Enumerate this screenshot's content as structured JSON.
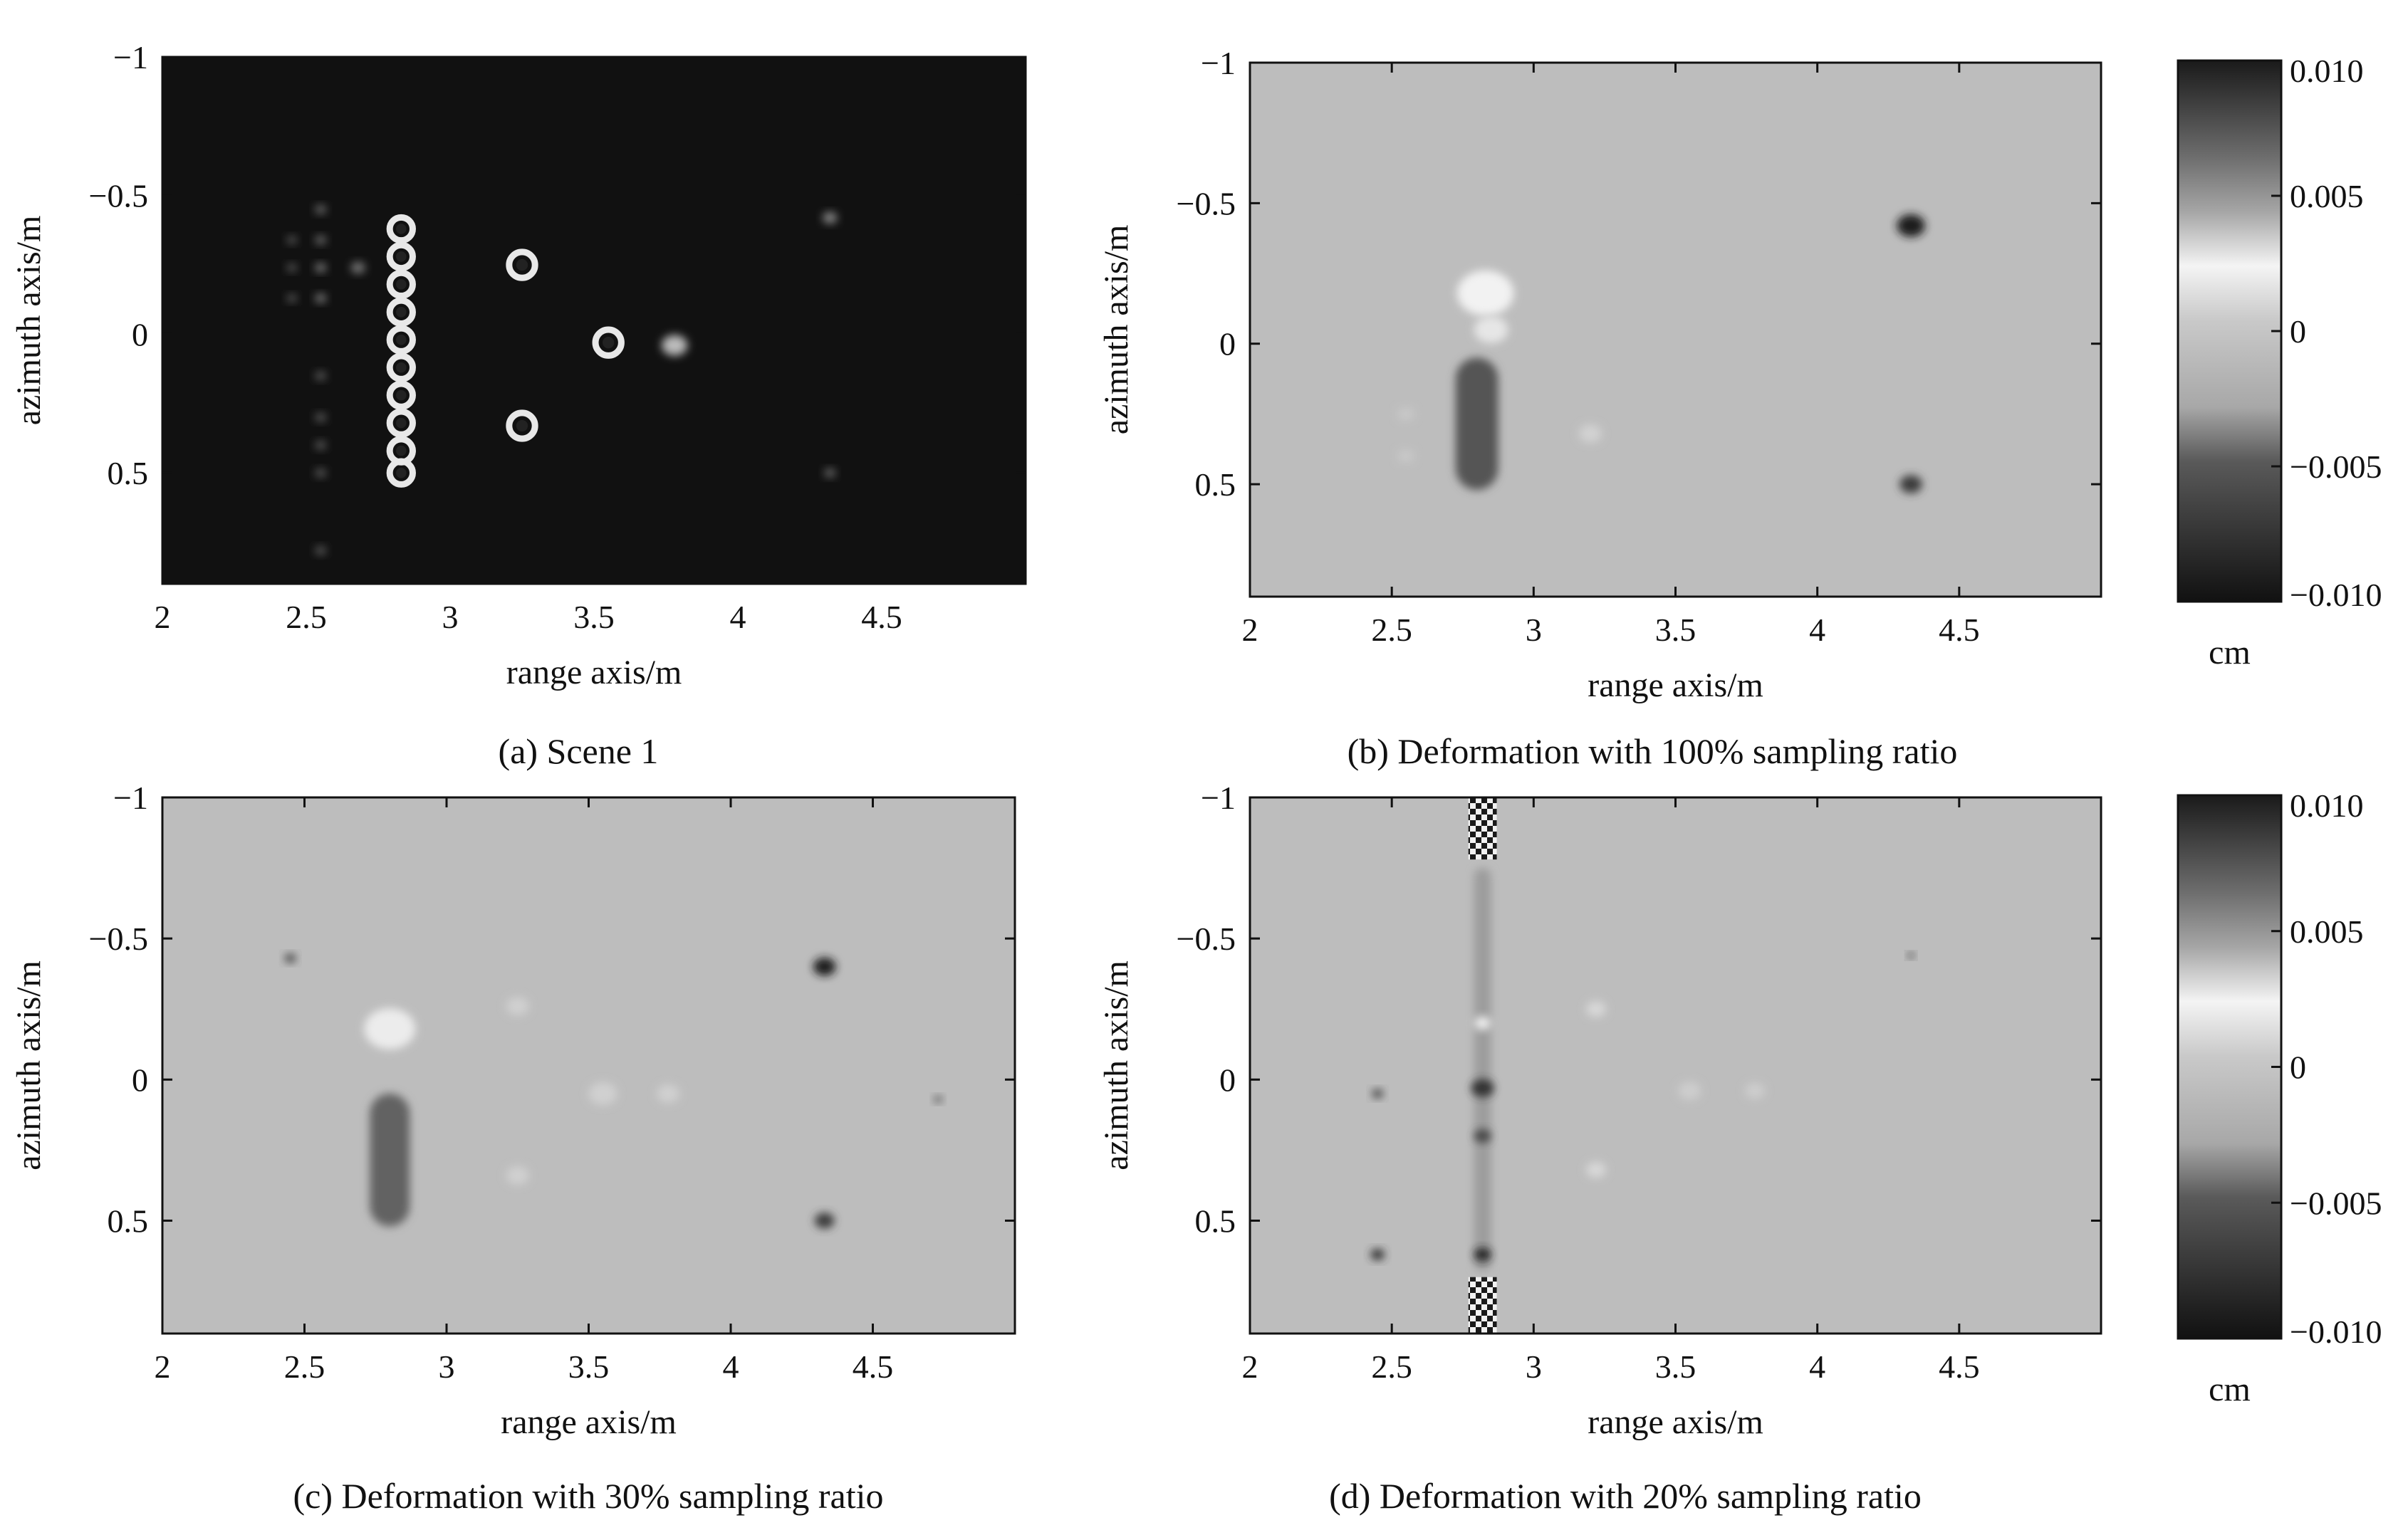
{
  "chart_data": [
    {
      "type": "heatmap",
      "caption": "(a) Scene 1",
      "xlabel": "range axis/m",
      "ylabel": "azimuth axis/m",
      "xlim": [
        2,
        5
      ],
      "ylim": [
        -1,
        0.9
      ],
      "xticks": [
        "2",
        "2.5",
        "3",
        "3.5",
        "4",
        "4.5"
      ],
      "yticks": [
        "−1",
        "−0.5",
        "0",
        "0.5"
      ],
      "background": "#111111",
      "features": [
        {
          "kind": "ring",
          "x": 2.83,
          "y": -0.38,
          "r": 0.04
        },
        {
          "kind": "ring",
          "x": 2.83,
          "y": -0.28,
          "r": 0.04
        },
        {
          "kind": "ring",
          "x": 2.83,
          "y": -0.18,
          "r": 0.04
        },
        {
          "kind": "ring",
          "x": 2.83,
          "y": -0.08,
          "r": 0.04
        },
        {
          "kind": "ring",
          "x": 2.83,
          "y": 0.02,
          "r": 0.04
        },
        {
          "kind": "ring",
          "x": 2.83,
          "y": 0.12,
          "r": 0.04
        },
        {
          "kind": "ring",
          "x": 2.83,
          "y": 0.22,
          "r": 0.04
        },
        {
          "kind": "ring",
          "x": 2.83,
          "y": 0.32,
          "r": 0.04
        },
        {
          "kind": "ring",
          "x": 2.83,
          "y": 0.42,
          "r": 0.04
        },
        {
          "kind": "ring",
          "x": 2.83,
          "y": 0.5,
          "r": 0.04
        },
        {
          "kind": "ring",
          "x": 3.25,
          "y": -0.25,
          "r": 0.045
        },
        {
          "kind": "ring",
          "x": 3.25,
          "y": 0.33,
          "r": 0.045
        },
        {
          "kind": "ring",
          "x": 3.55,
          "y": 0.03,
          "r": 0.045
        },
        {
          "kind": "blob",
          "x": 3.78,
          "y": 0.04,
          "r": 0.045,
          "color": "#bbbbbb"
        },
        {
          "kind": "blob",
          "x": 4.32,
          "y": -0.42,
          "r": 0.025,
          "color": "#888888"
        },
        {
          "kind": "blob",
          "x": 4.32,
          "y": 0.5,
          "r": 0.02,
          "color": "#666666"
        },
        {
          "kind": "blob",
          "x": 2.55,
          "y": -0.45,
          "r": 0.02,
          "color": "#666666"
        },
        {
          "kind": "blob",
          "x": 2.55,
          "y": -0.34,
          "r": 0.02,
          "color": "#666666"
        },
        {
          "kind": "blob",
          "x": 2.55,
          "y": -0.24,
          "r": 0.02,
          "color": "#777777"
        },
        {
          "kind": "blob",
          "x": 2.55,
          "y": -0.13,
          "r": 0.02,
          "color": "#777777"
        },
        {
          "kind": "blob",
          "x": 2.55,
          "y": 0.15,
          "r": 0.02,
          "color": "#555555"
        },
        {
          "kind": "blob",
          "x": 2.55,
          "y": 0.3,
          "r": 0.02,
          "color": "#555555"
        },
        {
          "kind": "blob",
          "x": 2.55,
          "y": 0.4,
          "r": 0.02,
          "color": "#555555"
        },
        {
          "kind": "blob",
          "x": 2.55,
          "y": 0.5,
          "r": 0.02,
          "color": "#555555"
        },
        {
          "kind": "blob",
          "x": 2.55,
          "y": 0.78,
          "r": 0.02,
          "color": "#555555"
        },
        {
          "kind": "blob",
          "x": 2.45,
          "y": -0.34,
          "r": 0.018,
          "color": "#555555"
        },
        {
          "kind": "blob",
          "x": 2.45,
          "y": -0.24,
          "r": 0.018,
          "color": "#555555"
        },
        {
          "kind": "blob",
          "x": 2.45,
          "y": -0.13,
          "r": 0.018,
          "color": "#555555"
        },
        {
          "kind": "blob",
          "x": 2.68,
          "y": -0.24,
          "r": 0.025,
          "color": "#777777"
        }
      ]
    },
    {
      "type": "heatmap",
      "caption": "(b) Deformation with 100% sampling ratio",
      "xlabel": "range axis/m",
      "ylabel": "azimuth axis/m",
      "xlim": [
        2,
        5
      ],
      "ylim": [
        -1,
        0.9
      ],
      "xticks": [
        "2",
        "2.5",
        "3",
        "3.5",
        "4",
        "4.5"
      ],
      "yticks": [
        "−1",
        "−0.5",
        "0",
        "0.5"
      ],
      "background": "#bdbdbd",
      "colorbar": {
        "ticks": [
          "0.010",
          "0.005",
          "0",
          "−0.005",
          "−0.010"
        ],
        "unit": "cm"
      },
      "features": [
        {
          "kind": "column",
          "x": 2.8,
          "y0": 0.05,
          "y1": 0.52,
          "w": 0.15,
          "color": "#555555"
        },
        {
          "kind": "blob",
          "x": 2.83,
          "y": -0.18,
          "r": 0.1,
          "color": "#f2f2f2"
        },
        {
          "kind": "blob",
          "x": 2.85,
          "y": -0.05,
          "r": 0.06,
          "color": "#e6e6e6"
        },
        {
          "kind": "blob",
          "x": 4.33,
          "y": -0.42,
          "r": 0.05,
          "color": "#1a1a1a"
        },
        {
          "kind": "blob",
          "x": 4.33,
          "y": 0.5,
          "r": 0.04,
          "color": "#3a3a3a"
        },
        {
          "kind": "blob",
          "x": 3.2,
          "y": 0.32,
          "r": 0.04,
          "color": "#d2d2d2"
        },
        {
          "kind": "blob",
          "x": 2.55,
          "y": 0.25,
          "r": 0.03,
          "color": "#c8c8c8"
        },
        {
          "kind": "blob",
          "x": 2.55,
          "y": 0.4,
          "r": 0.03,
          "color": "#c8c8c8"
        }
      ]
    },
    {
      "type": "heatmap",
      "caption": "(c) Deformation with 30% sampling ratio",
      "xlabel": "range axis/m",
      "ylabel": "azimuth axis/m",
      "xlim": [
        2,
        5
      ],
      "ylim": [
        -1,
        0.9
      ],
      "xticks": [
        "2",
        "2.5",
        "3",
        "3.5",
        "4",
        "4.5"
      ],
      "yticks": [
        "−1",
        "−0.5",
        "0",
        "0.5"
      ],
      "background": "#bdbdbd",
      "features": [
        {
          "kind": "column",
          "x": 2.8,
          "y0": 0.05,
          "y1": 0.52,
          "w": 0.14,
          "color": "#626262"
        },
        {
          "kind": "blob",
          "x": 2.8,
          "y": -0.18,
          "r": 0.09,
          "color": "#ececec"
        },
        {
          "kind": "blob",
          "x": 4.33,
          "y": -0.4,
          "r": 0.04,
          "color": "#1a1a1a"
        },
        {
          "kind": "blob",
          "x": 4.33,
          "y": 0.5,
          "r": 0.035,
          "color": "#3a3a3a"
        },
        {
          "kind": "blob",
          "x": 3.55,
          "y": 0.05,
          "r": 0.05,
          "color": "#d0d0d0"
        },
        {
          "kind": "blob",
          "x": 3.78,
          "y": 0.05,
          "r": 0.04,
          "color": "#d0d0d0"
        },
        {
          "kind": "blob",
          "x": 3.25,
          "y": -0.26,
          "r": 0.04,
          "color": "#d0d0d0"
        },
        {
          "kind": "blob",
          "x": 3.25,
          "y": 0.34,
          "r": 0.04,
          "color": "#d0d0d0"
        },
        {
          "kind": "blob",
          "x": 2.45,
          "y": -0.43,
          "r": 0.02,
          "color": "#444444"
        },
        {
          "kind": "blob",
          "x": 4.73,
          "y": 0.07,
          "r": 0.015,
          "color": "#555555"
        }
      ]
    },
    {
      "type": "heatmap",
      "caption": "(d) Deformation with 20% sampling ratio",
      "xlabel": "range axis/m",
      "ylabel": "azimuth axis/m",
      "xlim": [
        2,
        5
      ],
      "ylim": [
        -1,
        0.9
      ],
      "xticks": [
        "2",
        "2.5",
        "3",
        "3.5",
        "4",
        "4.5"
      ],
      "yticks": [
        "−1",
        "−0.5",
        "0",
        "0.5"
      ],
      "background": "#bdbdbd",
      "colorbar": {
        "ticks": [
          "0.010",
          "0.005",
          "0",
          "−0.005",
          "−0.010"
        ],
        "unit": "cm"
      },
      "features": [
        {
          "kind": "checker",
          "x": 2.82,
          "y0": -1.0,
          "y1": -0.78,
          "w": 0.1
        },
        {
          "kind": "checker",
          "x": 2.82,
          "y0": 0.7,
          "y1": 0.9,
          "w": 0.1
        },
        {
          "kind": "column",
          "x": 2.82,
          "y0": -0.75,
          "y1": 0.68,
          "w": 0.06,
          "color": "#9c9c9c"
        },
        {
          "kind": "blob",
          "x": 2.82,
          "y": -0.2,
          "r": 0.03,
          "color": "#efefef"
        },
        {
          "kind": "blob",
          "x": 2.82,
          "y": 0.03,
          "r": 0.04,
          "color": "#333333"
        },
        {
          "kind": "blob",
          "x": 2.82,
          "y": 0.2,
          "r": 0.03,
          "color": "#444444"
        },
        {
          "kind": "blob",
          "x": 2.82,
          "y": 0.62,
          "r": 0.03,
          "color": "#222222"
        },
        {
          "kind": "blob",
          "x": 3.22,
          "y": -0.25,
          "r": 0.035,
          "color": "#d8d8d8"
        },
        {
          "kind": "blob",
          "x": 3.22,
          "y": 0.32,
          "r": 0.035,
          "color": "#d8d8d8"
        },
        {
          "kind": "blob",
          "x": 3.55,
          "y": 0.04,
          "r": 0.04,
          "color": "#cdcdcd"
        },
        {
          "kind": "blob",
          "x": 3.78,
          "y": 0.04,
          "r": 0.035,
          "color": "#cdcdcd"
        },
        {
          "kind": "blob",
          "x": 2.45,
          "y": 0.62,
          "r": 0.025,
          "color": "#333333"
        },
        {
          "kind": "blob",
          "x": 2.45,
          "y": 0.05,
          "r": 0.02,
          "color": "#444444"
        },
        {
          "kind": "blob",
          "x": 4.33,
          "y": -0.44,
          "r": 0.012,
          "color": "#333333"
        }
      ]
    }
  ]
}
